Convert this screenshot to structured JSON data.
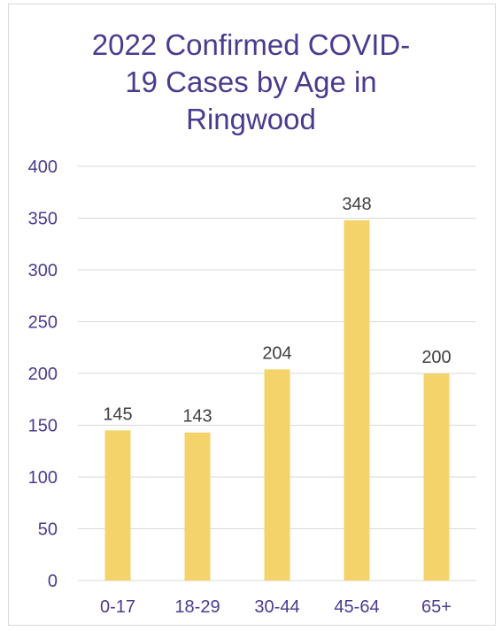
{
  "chart_data": {
    "type": "bar",
    "title": "2022 Confirmed COVID-19 Cases by Age in Ringwood",
    "title_display": "2022 Confirmed COVID-\n19 Cases by Age in\nRingwood",
    "categories": [
      "0-17",
      "18-29",
      "30-44",
      "45-64",
      "65+"
    ],
    "values": [
      145,
      143,
      204,
      348,
      200
    ],
    "data_labels": [
      "145",
      "143",
      "204",
      "348",
      "200"
    ],
    "y_ticks": [
      "0",
      "50",
      "100",
      "150",
      "200",
      "250",
      "300",
      "350",
      "400"
    ],
    "ylim": [
      0,
      400
    ],
    "xlabel": "",
    "ylabel": "",
    "grid": true,
    "legend": "none"
  },
  "colors": {
    "bar": "#f4d36b",
    "title": "#4b3b8f",
    "axis_text": "#4b3b8f",
    "data_label": "#404040",
    "gridline": "#d9d9d9",
    "frame": "#d9d9d9"
  }
}
